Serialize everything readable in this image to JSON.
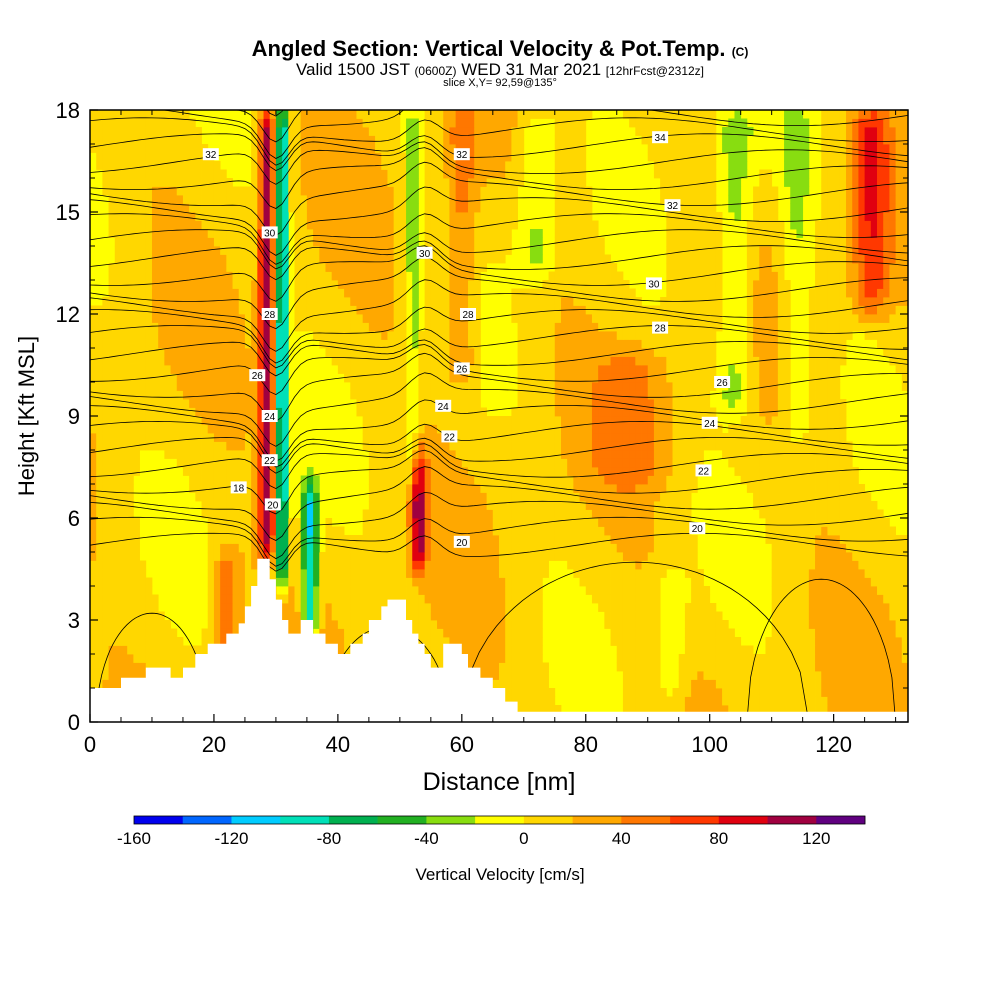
{
  "title": {
    "main": "Angled Section: Vertical Velocity & Pot.Temp.",
    "main_suffix": "(C)",
    "valid_prefix": "Valid 1500 JST",
    "valid_utc": "(0600Z)",
    "valid_date": "WED 31 Mar 2021",
    "forecast": "[12hrFcst@2312z]",
    "slice": "slice X,Y= 92,59@135°"
  },
  "colorbar": {
    "label": "Vertical Velocity [cm/s]",
    "tick_labels": [
      "-160",
      "-120",
      "-80",
      "-40",
      "0",
      "40",
      "80",
      "120"
    ],
    "colors": [
      "#0000ee",
      "#0066ff",
      "#00ccff",
      "#00e0b8",
      "#00b050",
      "#22b022",
      "#88dd10",
      "#ffff00",
      "#ffd700",
      "#ffa800",
      "#ff7700",
      "#ff3800",
      "#e00010",
      "#a00040",
      "#600080"
    ],
    "range": [
      -160,
      140
    ]
  },
  "chart_data": {
    "type": "heatmap",
    "xlabel": "Distance [nm]",
    "ylabel": "Height [Kft MSL]",
    "xlim": [
      0,
      132
    ],
    "ylim": [
      0,
      18
    ],
    "x_ticks": [
      0,
      20,
      40,
      60,
      80,
      100,
      120
    ],
    "y_ticks": [
      0,
      3,
      6,
      9,
      12,
      15,
      18
    ],
    "terrain": [
      [
        0,
        1.0
      ],
      [
        5,
        1.0
      ],
      [
        5,
        1.3
      ],
      [
        9,
        1.3
      ],
      [
        9,
        1.6
      ],
      [
        13,
        1.6
      ],
      [
        13,
        1.3
      ],
      [
        15,
        1.3
      ],
      [
        15,
        1.6
      ],
      [
        17,
        1.6
      ],
      [
        17,
        2.0
      ],
      [
        19,
        2.0
      ],
      [
        19,
        2.3
      ],
      [
        22,
        2.3
      ],
      [
        22,
        2.6
      ],
      [
        24,
        2.6
      ],
      [
        24,
        2.9
      ],
      [
        25,
        2.9
      ],
      [
        25,
        3.4
      ],
      [
        26,
        3.4
      ],
      [
        26,
        4.0
      ],
      [
        27,
        4.0
      ],
      [
        27,
        4.8
      ],
      [
        29,
        4.8
      ],
      [
        29,
        4.2
      ],
      [
        30,
        4.2
      ],
      [
        30,
        3.6
      ],
      [
        31,
        3.6
      ],
      [
        31,
        3.0
      ],
      [
        32,
        3.0
      ],
      [
        32,
        2.6
      ],
      [
        34,
        2.6
      ],
      [
        34,
        3.0
      ],
      [
        36,
        3.0
      ],
      [
        36,
        2.6
      ],
      [
        38,
        2.6
      ],
      [
        38,
        2.3
      ],
      [
        40,
        2.3
      ],
      [
        40,
        2.0
      ],
      [
        42,
        2.0
      ],
      [
        42,
        2.3
      ],
      [
        44,
        2.3
      ],
      [
        44,
        2.6
      ],
      [
        45,
        2.6
      ],
      [
        45,
        3.0
      ],
      [
        47,
        3.0
      ],
      [
        47,
        3.4
      ],
      [
        48,
        3.4
      ],
      [
        48,
        3.6
      ],
      [
        51,
        3.6
      ],
      [
        51,
        3.0
      ],
      [
        52,
        3.0
      ],
      [
        52,
        2.6
      ],
      [
        53,
        2.6
      ],
      [
        53,
        2.3
      ],
      [
        54,
        2.3
      ],
      [
        54,
        2.0
      ],
      [
        55,
        2.0
      ],
      [
        55,
        1.6
      ],
      [
        57,
        1.6
      ],
      [
        57,
        2.3
      ],
      [
        60,
        2.3
      ],
      [
        60,
        2.0
      ],
      [
        61,
        2.0
      ],
      [
        61,
        1.6
      ],
      [
        63,
        1.6
      ],
      [
        63,
        1.3
      ],
      [
        65,
        1.3
      ],
      [
        65,
        1.0
      ],
      [
        67,
        1.0
      ],
      [
        67,
        0.6
      ],
      [
        69,
        0.6
      ],
      [
        69,
        0.3
      ],
      [
        132,
        0.3
      ]
    ],
    "theta_isentropes": [
      18,
      20,
      22,
      24,
      26,
      28,
      30,
      32,
      34
    ],
    "contour_labels": [
      {
        "text": "32",
        "x": 19.5,
        "y": 16.7
      },
      {
        "text": "32",
        "x": 60,
        "y": 16.7
      },
      {
        "text": "34",
        "x": 92,
        "y": 17.2
      },
      {
        "text": "32",
        "x": 94,
        "y": 15.2
      },
      {
        "text": "30",
        "x": 29,
        "y": 14.4
      },
      {
        "text": "30",
        "x": 54,
        "y": 13.8
      },
      {
        "text": "30",
        "x": 91,
        "y": 12.9
      },
      {
        "text": "28",
        "x": 29,
        "y": 12.0
      },
      {
        "text": "28",
        "x": 61,
        "y": 12.0
      },
      {
        "text": "28",
        "x": 92,
        "y": 11.6
      },
      {
        "text": "26",
        "x": 27,
        "y": 10.2
      },
      {
        "text": "26",
        "x": 60,
        "y": 10.4
      },
      {
        "text": "26",
        "x": 102,
        "y": 10.0
      },
      {
        "text": "24",
        "x": 29,
        "y": 9.0
      },
      {
        "text": "24",
        "x": 57,
        "y": 9.3
      },
      {
        "text": "24",
        "x": 100,
        "y": 8.8
      },
      {
        "text": "22",
        "x": 29,
        "y": 7.7
      },
      {
        "text": "22",
        "x": 58,
        "y": 8.4
      },
      {
        "text": "22",
        "x": 99,
        "y": 7.4
      },
      {
        "text": "18",
        "x": 24,
        "y": 6.9
      },
      {
        "text": "20",
        "x": 29.5,
        "y": 6.4
      },
      {
        "text": "20",
        "x": 60,
        "y": 5.3
      },
      {
        "text": "20",
        "x": 98,
        "y": 5.7
      }
    ],
    "velocity_features": [
      {
        "x": 28.5,
        "y0": 5.0,
        "y1": 18,
        "halfwidth": 1.3,
        "value": 100
      },
      {
        "x": 31.0,
        "y0": 4.0,
        "y1": 18,
        "halfwidth": 1.0,
        "value": -120
      },
      {
        "x": 35.5,
        "y0": 2.5,
        "y1": 7.0,
        "halfwidth": 1.3,
        "value": -110
      },
      {
        "x": 53,
        "y0": 4.5,
        "y1": 8.0,
        "halfwidth": 1.2,
        "value": 90
      },
      {
        "x": 52,
        "y0": 7,
        "y1": 18,
        "halfwidth": 1.3,
        "value": -40
      },
      {
        "x": 72,
        "y0": 13,
        "y1": 18,
        "halfwidth": 3.5,
        "value": -40
      },
      {
        "x": 104,
        "y0": 9,
        "y1": 18,
        "halfwidth": 3.0,
        "value": -45
      },
      {
        "x": 114,
        "y0": 8,
        "y1": 18,
        "halfwidth": 2.5,
        "value": -30
      },
      {
        "x": 126,
        "y0": 12,
        "y1": 18,
        "halfwidth": 3.0,
        "value": 60
      },
      {
        "x": 94,
        "y0": 0.5,
        "y1": 4.5,
        "halfwidth": 2.5,
        "value": -30
      },
      {
        "x": 22,
        "y0": 1.5,
        "y1": 5,
        "halfwidth": 2.0,
        "value": 50
      },
      {
        "x": 60,
        "y0": 10,
        "y1": 18,
        "halfwidth": 2.5,
        "value": 40
      },
      {
        "x": 88,
        "y0": 7,
        "y1": 11,
        "halfwidth": 6,
        "value": 30
      }
    ]
  }
}
